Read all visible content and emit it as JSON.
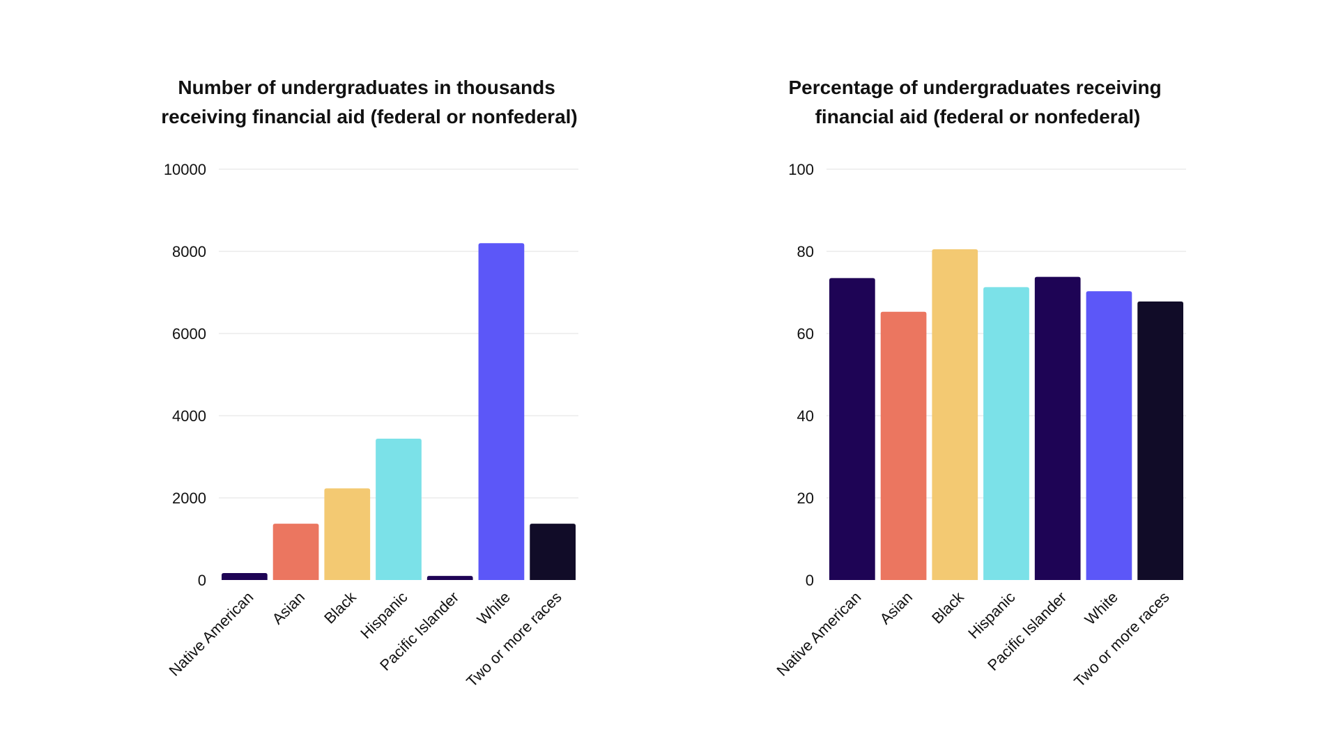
{
  "chart_data": [
    {
      "type": "bar",
      "title": "Number of undergraduates in thousands receiving financial aid (federal or nonfederal)",
      "title_lines": [
        "Number of undergraduates in thousands",
        "receiving financial aid (federal or nonfederal)"
      ],
      "categories": [
        "Native American",
        "Asian",
        "Black",
        "Hispanic",
        "Pacific Islander",
        "White",
        "Two or more races"
      ],
      "values": [
        170,
        1370,
        2230,
        3440,
        100,
        8200,
        1370
      ],
      "colors": [
        "#1e0455",
        "#eb7660",
        "#f3c972",
        "#7be1e8",
        "#1e0455",
        "#5c57f8",
        "#110c28"
      ],
      "yticks": [
        0,
        2000,
        4000,
        6000,
        8000,
        10000
      ],
      "ylim": [
        0,
        10000
      ],
      "xlabel": "",
      "ylabel": "",
      "grid": true
    },
    {
      "type": "bar",
      "title": "Percentage of undergraduates receiving financial aid (federal or nonfederal)",
      "title_lines": [
        "Percentage of undergraduates receiving",
        "financial aid (federal or nonfederal)"
      ],
      "categories": [
        "Native American",
        "Asian",
        "Black",
        "Hispanic",
        "Pacific Islander",
        "White",
        "Two or more races"
      ],
      "values": [
        73.5,
        65.3,
        80.5,
        71.3,
        73.8,
        70.3,
        67.8
      ],
      "colors": [
        "#1e0455",
        "#eb7660",
        "#f3c972",
        "#7be1e8",
        "#1e0455",
        "#5c57f8",
        "#110c28"
      ],
      "yticks": [
        0,
        20,
        40,
        60,
        80,
        100
      ],
      "ylim": [
        0,
        100
      ],
      "xlabel": "",
      "ylabel": "",
      "grid": true
    }
  ]
}
